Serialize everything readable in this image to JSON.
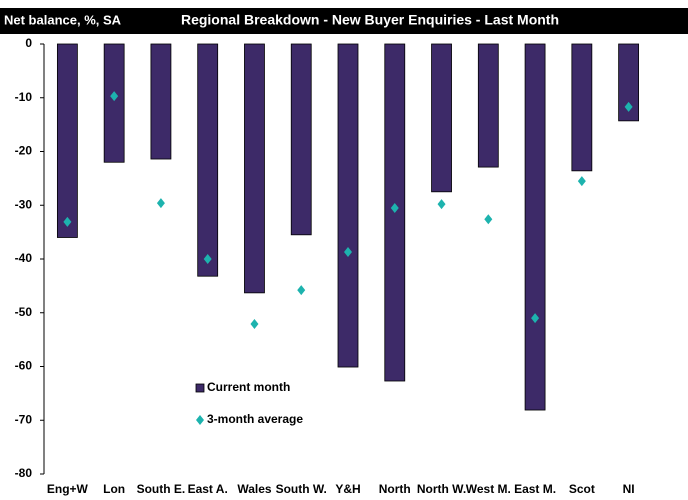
{
  "chart_data": {
    "type": "bar",
    "title": "Regional Breakdown - New Buyer Enquiries - Last Month",
    "y_label": "Net balance, %, SA",
    "categories": [
      "Eng+W",
      "Lon",
      "South E.",
      "East A.",
      "Wales",
      "South W.",
      "Y&H",
      "North",
      "North W.",
      "West M.",
      "East M.",
      "Scot",
      "NI"
    ],
    "series": [
      {
        "name": "Current month",
        "color": "#3d2a68",
        "mark": "bar",
        "values": [
          -36,
          -22,
          -21.4,
          -43.2,
          -46.3,
          -35.5,
          -60.1,
          -62.7,
          -27.5,
          -22.9,
          -68.1,
          -23.6,
          -14.3
        ]
      },
      {
        "name": "3-month average",
        "color": "#1db3ae",
        "mark": "diamond",
        "values": [
          -33.1,
          -9.7,
          -29.6,
          -40,
          -52.1,
          -45.8,
          -38.7,
          -30.5,
          -29.8,
          -32.6,
          -51,
          -25.5,
          -11.7
        ]
      }
    ],
    "ylim": [
      -80,
      0
    ],
    "yticks": [
      0,
      -10,
      -20,
      -30,
      -40,
      -50,
      -60,
      -70,
      -80
    ],
    "grid": false
  }
}
